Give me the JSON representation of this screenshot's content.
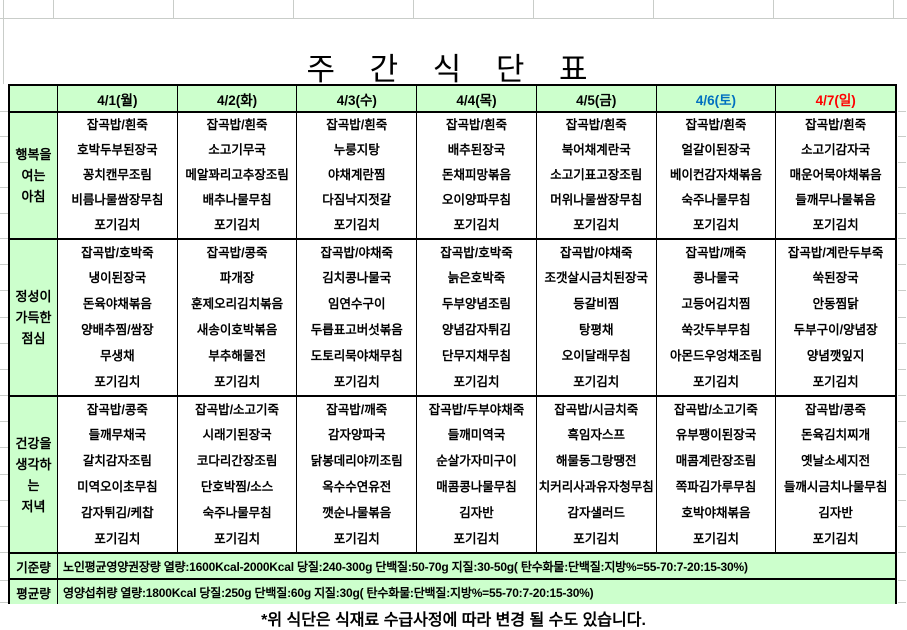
{
  "title": "주 간 식 단 표",
  "colors": {
    "header_bg": "#ccffcc",
    "weekday_text": "#000000",
    "saturday_text": "#0070c0",
    "sunday_text": "#ff0000",
    "border": "#000000"
  },
  "header": {
    "day_columns": [
      {
        "label": "4/1(월)",
        "color": "#000000"
      },
      {
        "label": "4/2(화)",
        "color": "#000000"
      },
      {
        "label": "4/3(수)",
        "color": "#000000"
      },
      {
        "label": "4/4(목)",
        "color": "#000000"
      },
      {
        "label": "4/5(금)",
        "color": "#000000"
      },
      {
        "label": "4/6(토)",
        "color": "#0070c0"
      },
      {
        "label": "4/7(일)",
        "color": "#ff0000"
      }
    ]
  },
  "sections": [
    {
      "name": "행복을 여는 아침",
      "label_lines": [
        "행복을",
        "여는",
        "아침"
      ],
      "days": [
        [
          "잡곡밥/흰죽",
          "호박두부된장국",
          "꽁치캔무조림",
          "비름나물쌈장무침",
          "포기김치"
        ],
        [
          "잡곡밥/흰죽",
          "소고기무국",
          "메알꽈리고추장조림",
          "배추나물무침",
          "포기김치"
        ],
        [
          "잡곡밥/흰죽",
          "누룽지탕",
          "야채계란찜",
          "다짐낙지젓갈",
          "포기김치"
        ],
        [
          "잡곡밥/흰죽",
          "배추된장국",
          "돈채피망볶음",
          "오이양파무침",
          "포기김치"
        ],
        [
          "잡곡밥/흰죽",
          "북어채계란국",
          "소고기표고장조림",
          "머위나물쌈장무침",
          "포기김치"
        ],
        [
          "잡곡밥/흰죽",
          "얼갈이된장국",
          "베이컨감자채볶음",
          "숙주나물무침",
          "포기김치"
        ],
        [
          "잡곡밥/흰죽",
          "소고기감자국",
          "매운어묵야채볶음",
          "들깨무나물볶음",
          "포기김치"
        ]
      ]
    },
    {
      "name": "정성이 가득한 점심",
      "label_lines": [
        "정성이",
        "가득한",
        "점심"
      ],
      "days": [
        [
          "잡곡밥/호박죽",
          "냉이된장국",
          "돈육야채볶음",
          "양배추찜/쌈장",
          "무생채",
          "포기김치"
        ],
        [
          "잡곡밥/콩죽",
          "파개장",
          "훈제오리김치볶음",
          "새송이호박볶음",
          "부추해물전",
          "포기김치"
        ],
        [
          "잡곡밥/야채죽",
          "김치콩나물국",
          "임연수구이",
          "두릅표고버섯볶음",
          "도토리묵야채무침",
          "포기김치"
        ],
        [
          "잡곡밥/호박죽",
          "늙은호박죽",
          "두부양념조림",
          "양념감자튀김",
          "단무지채무침",
          "포기김치"
        ],
        [
          "잡곡밥/야채죽",
          "조갯살시금치된장국",
          "등갈비찜",
          "탕평채",
          "오이달래무침",
          "포기김치"
        ],
        [
          "잡곡밥/깨죽",
          "콩나물국",
          "고등어김치찜",
          "쑥갓두부무침",
          "아몬드우엉채조림",
          "포기김치"
        ],
        [
          "잡곡밥/계란두부죽",
          "쑥된장국",
          "안동찜닭",
          "두부구이/양념장",
          "양념깻잎지",
          "포기김치"
        ]
      ]
    },
    {
      "name": "건강을 생각하는 저녁",
      "label_lines": [
        "건강을",
        "생각하는",
        "저녁"
      ],
      "days": [
        [
          "잡곡밥/콩죽",
          "들깨무채국",
          "갈치감자조림",
          "미역오이초무침",
          "감자튀김/케찹",
          "포기김치"
        ],
        [
          "잡곡밥/소고기죽",
          "시래기된장국",
          "코다리간장조림",
          "단호박찜/소스",
          "숙주나물무침",
          "포기김치"
        ],
        [
          "잡곡밥/깨죽",
          "감자양파국",
          "닭봉데리야끼조림",
          "옥수수연유전",
          "깻순나물볶음",
          "포기김치"
        ],
        [
          "잡곡밥/두부야채죽",
          "들깨미역국",
          "순살가자미구이",
          "매콤콩나물무침",
          "김자반",
          "포기김치"
        ],
        [
          "잡곡밥/시금치죽",
          "흑임자스프",
          "해물동그랑땡전",
          "치커리사과유자청무침",
          "감자샐러드",
          "포기김치"
        ],
        [
          "잡곡밥/소고기죽",
          "유부팽이된장국",
          "매콤계란장조림",
          "쪽파김가루무침",
          "호박야채볶음",
          "포기김치"
        ],
        [
          "잡곡밥/콩죽",
          "돈육김치찌개",
          "옛날소세지전",
          "들깨시금치나물무침",
          "김자반",
          "포기김치"
        ]
      ]
    }
  ],
  "summary_rows": [
    {
      "label": "기준량",
      "content": "노인평균영양권장량 열량:1600Kcal-2000Kcal 당질:240-300g 단백질:50-70g 지질:30-50g( 탄수화물:단백질:지방%=55-70:7-20:15-30%)"
    },
    {
      "label": "평균량",
      "content": "영양섭취량 열량:1800Kcal 당질:250g 단백질:60g 지질:30g( 탄수화물:단백질:지방%=55-70:7-20:15-30%)"
    }
  ],
  "note": "*위 식단은 식재료 수급사정에 따라 변경 될 수도 있습니다."
}
